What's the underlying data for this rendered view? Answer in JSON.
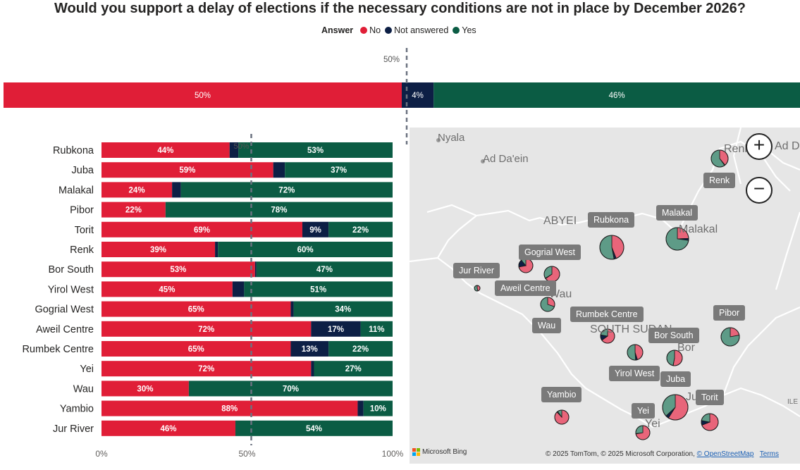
{
  "title": "Would you support a delay of elections if the necessary conditions are not in place by December 2026?",
  "legend": {
    "title": "Answer",
    "items": [
      {
        "label": "No",
        "color": "#e01e37"
      },
      {
        "label": "Not answered",
        "color": "#0d1f45"
      },
      {
        "label": "Yes",
        "color": "#0b5c44"
      }
    ]
  },
  "overall": {
    "reference_label": "50%",
    "values": [
      50,
      4,
      46
    ],
    "labels": [
      "50%",
      "4%",
      "46%"
    ]
  },
  "chart_data": {
    "type": "bar",
    "orientation": "horizontal",
    "stacked": "100%",
    "categories": [
      "Rubkona",
      "Juba",
      "Malakal",
      "Pibor",
      "Torit",
      "Renk",
      "Bor South",
      "Yirol West",
      "Gogrial West",
      "Aweil Centre",
      "Rumbek Centre",
      "Yei",
      "Wau",
      "Yambio",
      "Jur River"
    ],
    "series": [
      {
        "name": "No",
        "values": [
          44,
          59,
          24,
          22,
          69,
          39,
          53,
          45,
          65,
          72,
          65,
          72,
          30,
          88,
          46
        ],
        "labels": [
          "44%",
          "59%",
          "24%",
          "22%",
          "69%",
          "39%",
          "53%",
          "45%",
          "65%",
          "72%",
          "65%",
          "72%",
          "30%",
          "88%",
          "46%"
        ]
      },
      {
        "name": "Not answered",
        "values": [
          3,
          4,
          3,
          0,
          9,
          1,
          0.5,
          4,
          1,
          17,
          13,
          1,
          0,
          2,
          0
        ],
        "labels": [
          "",
          "",
          "",
          "",
          "9%",
          "",
          "",
          "",
          "",
          "17%",
          "13%",
          "",
          "",
          "",
          ""
        ]
      },
      {
        "name": "Yes",
        "values": [
          53,
          37,
          72,
          78,
          22,
          60,
          47,
          51,
          34,
          11,
          22,
          27,
          70,
          10,
          54
        ],
        "labels": [
          "53%",
          "37%",
          "72%",
          "78%",
          "22%",
          "60%",
          "47%",
          "51%",
          "34%",
          "11%",
          "22%",
          "27%",
          "70%",
          "10%",
          "54%"
        ]
      }
    ],
    "x_ticks": [
      "0%",
      "50%",
      "100%"
    ],
    "reference_line": {
      "value": 50,
      "label": "50%"
    },
    "xlim": [
      0,
      100
    ]
  },
  "map": {
    "zoom_in": "+",
    "zoom_out": "−",
    "place_names": [
      "Nyala",
      "Ad Da'ein",
      "Ad D",
      "ABYEI",
      "Malakal",
      "Renk",
      "Wau",
      "SOUTH SUDAN",
      "Bor",
      "Juba",
      "Yei",
      "ILE"
    ],
    "region_labels": [
      "Renk",
      "Rubkona",
      "Malakal",
      "Gogrial West",
      "Jur River",
      "Aweil Centre",
      "Wau",
      "Rumbek Centre",
      "Pibor",
      "Bor South",
      "Yirol West",
      "Juba",
      "Torit",
      "Yambio",
      "Yei"
    ],
    "pies": [
      {
        "region": "Renk",
        "no": 39,
        "na": 1,
        "yes": 60
      },
      {
        "region": "Rubkona",
        "no": 44,
        "na": 3,
        "yes": 53
      },
      {
        "region": "Malakal",
        "no": 24,
        "na": 3,
        "yes": 72
      },
      {
        "region": "Gogrial West",
        "no": 65,
        "na": 1,
        "yes": 34
      },
      {
        "region": "Aweil Centre",
        "no": 72,
        "na": 17,
        "yes": 11
      },
      {
        "region": "Jur River",
        "no": 46,
        "na": 0,
        "yes": 54
      },
      {
        "region": "Wau",
        "no": 30,
        "na": 0,
        "yes": 70
      },
      {
        "region": "Rumbek Centre",
        "no": 65,
        "na": 13,
        "yes": 22
      },
      {
        "region": "Pibor",
        "no": 22,
        "na": 0,
        "yes": 78
      },
      {
        "region": "Yirol West",
        "no": 45,
        "na": 4,
        "yes": 51
      },
      {
        "region": "Bor South",
        "no": 53,
        "na": 0.5,
        "yes": 47
      },
      {
        "region": "Juba",
        "no": 59,
        "na": 4,
        "yes": 37
      },
      {
        "region": "Torit",
        "no": 69,
        "na": 9,
        "yes": 22
      },
      {
        "region": "Yambio",
        "no": 88,
        "na": 2,
        "yes": 10
      },
      {
        "region": "Yei",
        "no": 72,
        "na": 1,
        "yes": 27
      }
    ],
    "bing_label": "Microsoft Bing",
    "attribution": "© 2025 TomTom, © 2025 Microsoft Corporation,",
    "osm_link": "© OpenStreetMap",
    "terms_link": "Terms"
  }
}
